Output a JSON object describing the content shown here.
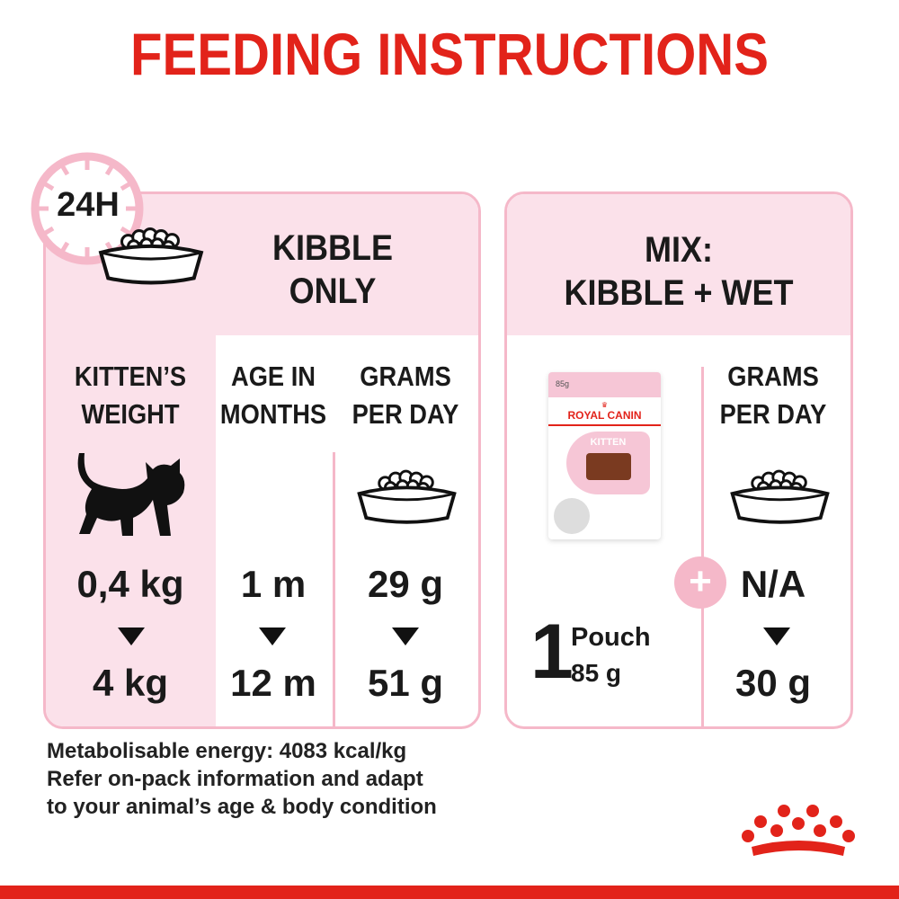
{
  "title": "FEEDING INSTRUCTIONS",
  "left_panel": {
    "badge": "24H",
    "heading_line1": "KIBBLE",
    "heading_line2": "ONLY",
    "columns": [
      {
        "header_line1": "KITTEN’S",
        "header_line2": "WEIGHT",
        "from": "0,4 kg",
        "to": "4 kg"
      },
      {
        "header_line1": "AGE IN",
        "header_line2": "MONTHS",
        "from": "1 m",
        "to": "12 m"
      },
      {
        "header_line1": "GRAMS",
        "header_line2": "PER DAY",
        "from": "29 g",
        "to": "51 g"
      }
    ]
  },
  "right_panel": {
    "heading_line1": "MIX:",
    "heading_line2": "KIBBLE + WET",
    "pouch": {
      "count": "1",
      "unit": "Pouch",
      "weight": "85 g",
      "pack_weight": "85g",
      "pack_brand": "ROYAL CANIN",
      "pack_product": "KITTEN"
    },
    "grams_header_line1": "GRAMS",
    "grams_header_line2": "PER DAY",
    "from": "N/A",
    "to": "30 g"
  },
  "notes": [
    "Metabolisable energy: 4083 kcal/kg",
    "Refer on-pack information and adapt",
    "to your animal’s age & body condition"
  ],
  "colors": {
    "brand_red": "#e2231a",
    "pink_border": "#f5b8c9",
    "pink_fill": "#fbe1ea"
  }
}
